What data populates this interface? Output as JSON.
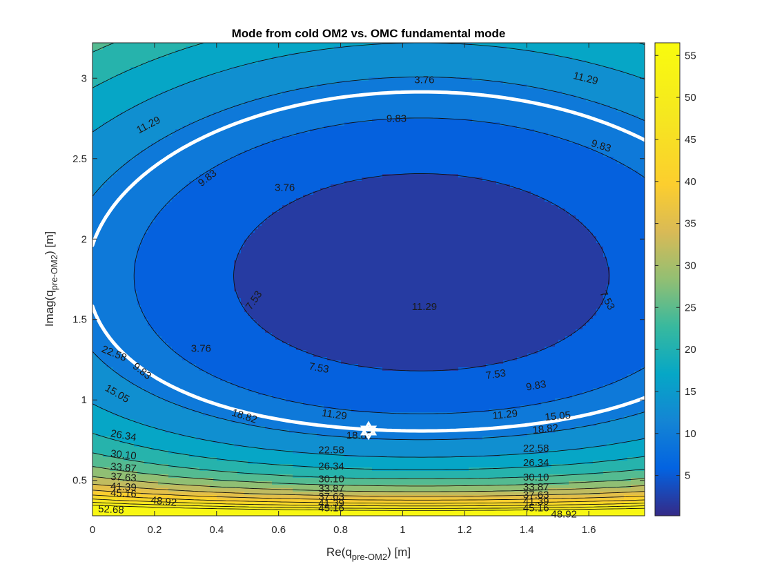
{
  "chart_data": {
    "type": "contour",
    "title": "Mode from cold OM2 vs. OMC fundamental mode",
    "xlabel": {
      "main": "Re(q",
      "sub": "pre-OM2",
      "tail": ") [m]"
    },
    "ylabel": {
      "main": "Imag(q",
      "sub": "pre-OM2",
      "tail": ") [m]"
    },
    "xlim": [
      0,
      1.78
    ],
    "ylim": [
      0.28,
      3.22
    ],
    "xticks": [
      "0",
      "0.2",
      "0.4",
      "0.6",
      "0.8",
      "1",
      "1.2",
      "1.4",
      "1.6"
    ],
    "yticks": [
      "0.5",
      "1",
      "1.5",
      "2",
      "2.5",
      "3"
    ],
    "colorbar": {
      "range": [
        0.2,
        56.5
      ],
      "ticks": [
        "5",
        "10",
        "15",
        "20",
        "25",
        "30",
        "35",
        "40",
        "45",
        "50",
        "55"
      ],
      "colormap": "parula"
    },
    "contour_levels": [
      3.76,
      7.53,
      11.29,
      15.05,
      18.82,
      22.58,
      26.34,
      30.1,
      33.87,
      37.63,
      41.39,
      45.16,
      48.92,
      52.68
    ],
    "contour_labels": [
      "3.76",
      "7.53",
      "9.83",
      "11.29",
      "15.05",
      "18.82",
      "22.58",
      "26.34",
      "30.10",
      "33.87",
      "37.63",
      "41.39",
      "45.16",
      "48.92",
      "52.68"
    ],
    "highlight_level": {
      "value": 9.83,
      "label": "9.83",
      "color": "#ffffff"
    },
    "minimum_center": [
      1.06,
      1.68
    ],
    "marker": {
      "x": 0.89,
      "y": 0.81,
      "shape": "hexagram",
      "color": "#ffffff"
    }
  }
}
